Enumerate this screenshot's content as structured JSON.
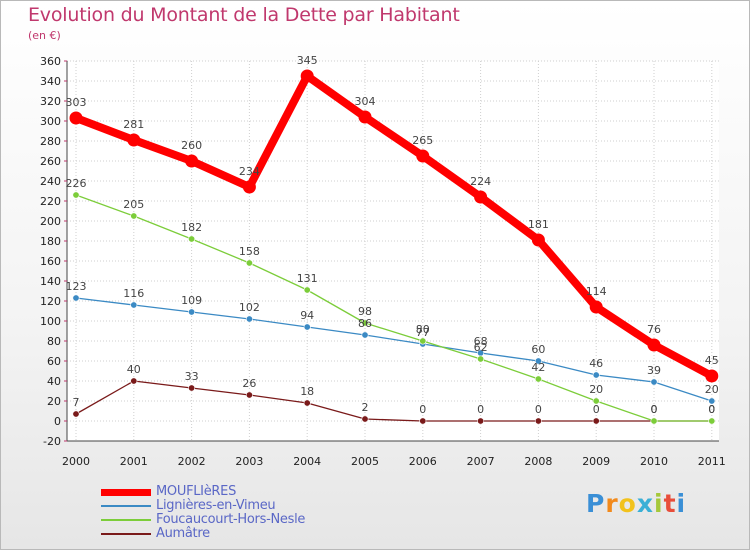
{
  "title": "Evolution du Montant de la Dette par Habitant",
  "subtitle": "(en €)",
  "logo": {
    "letters": [
      "P",
      "r",
      "o",
      "x",
      "i",
      "t",
      "i"
    ],
    "colors": [
      "#3a8fd6",
      "#f28a1c",
      "#f2c21c",
      "#3ab0d6",
      "#a5c83a",
      "#e84d3a",
      "#3a8fd6"
    ]
  },
  "chart_data": {
    "type": "line",
    "x": [
      "2000",
      "2001",
      "2002",
      "2003",
      "2004",
      "2005",
      "2006",
      "2007",
      "2008",
      "2009",
      "2010",
      "2011"
    ],
    "ylim": [
      -20,
      360
    ],
    "yticks": [
      -20,
      0,
      20,
      40,
      60,
      80,
      100,
      120,
      140,
      160,
      180,
      200,
      220,
      240,
      260,
      280,
      300,
      320,
      340,
      360
    ],
    "grid": true,
    "legend": "bottom-left",
    "series": [
      {
        "name": "MOUFLIèRES",
        "color": "#ff0000",
        "values": [
          303,
          281,
          260,
          234,
          345,
          304,
          265,
          224,
          181,
          114,
          76,
          45
        ],
        "labels": [
          "303",
          "281",
          "260",
          "234",
          "345",
          "304",
          "265",
          "224",
          "181",
          "114",
          "76",
          "45"
        ]
      },
      {
        "name": "Lignières-en-Vimeu",
        "color": "#3b8ac4",
        "values": [
          123,
          116,
          109,
          102,
          94,
          86,
          77,
          68,
          60,
          46,
          39,
          20
        ],
        "labels": [
          "123",
          "116",
          "109",
          "102",
          "94",
          "86",
          "77",
          "68",
          "60",
          "46",
          "39",
          "20"
        ]
      },
      {
        "name": "Foucaucourt-Hors-Nesle",
        "color": "#7ccd3a",
        "values": [
          226,
          205,
          182,
          158,
          131,
          98,
          80,
          62,
          42,
          20,
          0,
          0
        ],
        "labels": [
          "226",
          "205",
          "182",
          "158",
          "131",
          "98",
          "80",
          "62",
          "42",
          "20",
          "0",
          "0"
        ]
      },
      {
        "name": "Aumâtre",
        "color": "#7a1a1a",
        "values": [
          7,
          40,
          33,
          26,
          18,
          2,
          0,
          0,
          0,
          0,
          0,
          0
        ],
        "labels": [
          "7",
          "40",
          "33",
          "26",
          "18",
          "2",
          "0",
          "0",
          "0",
          "0",
          "0",
          "0"
        ]
      }
    ]
  }
}
